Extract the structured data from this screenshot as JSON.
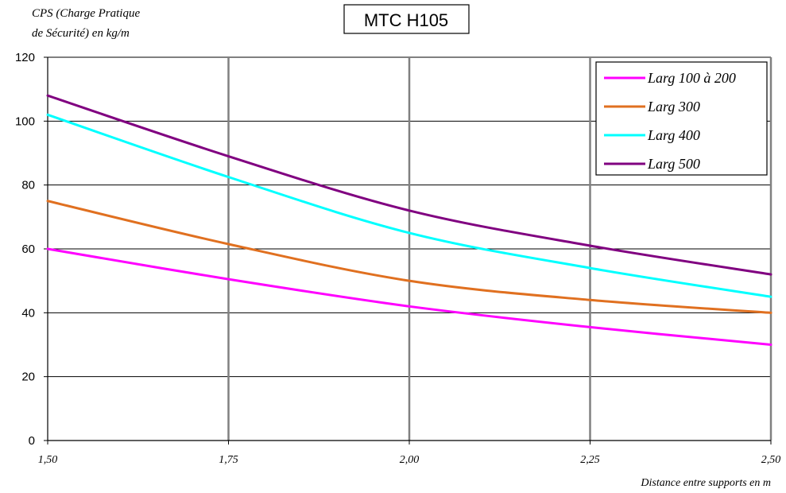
{
  "chart_data": {
    "type": "line",
    "title": "MTC H105",
    "ylabel_lines": [
      "CPS (Charge Pratique",
      "de Sécurité) en kg/m"
    ],
    "xlabel": "Distance entre supports en m",
    "x": [
      1.5,
      1.75,
      2.0,
      2.25,
      2.5
    ],
    "x_tick_labels": [
      "1,50",
      "1,75",
      "2,00",
      "2,25",
      "2,50"
    ],
    "xlim": [
      1.5,
      2.5
    ],
    "ylim": [
      0,
      120
    ],
    "y_ticks": [
      0,
      20,
      40,
      60,
      80,
      100,
      120
    ],
    "y_tick_labels": [
      "0",
      "20",
      "40",
      "60",
      "80",
      "100",
      "120"
    ],
    "grid": {
      "horizontal": true,
      "vertical": true
    },
    "legend_position": "top-right",
    "series": [
      {
        "name": "Larg 100 à 200",
        "color": "#ff00ff",
        "values": [
          60,
          50.5,
          42,
          35.5,
          30
        ]
      },
      {
        "name": "Larg 300",
        "color": "#e07020",
        "values": [
          75,
          61.5,
          50,
          44,
          40
        ]
      },
      {
        "name": "Larg 400",
        "color": "#00ffff",
        "values": [
          102,
          82.5,
          65,
          54,
          45
        ]
      },
      {
        "name": "Larg 500",
        "color": "#800080",
        "values": [
          108,
          89,
          72,
          61,
          52
        ]
      }
    ]
  }
}
